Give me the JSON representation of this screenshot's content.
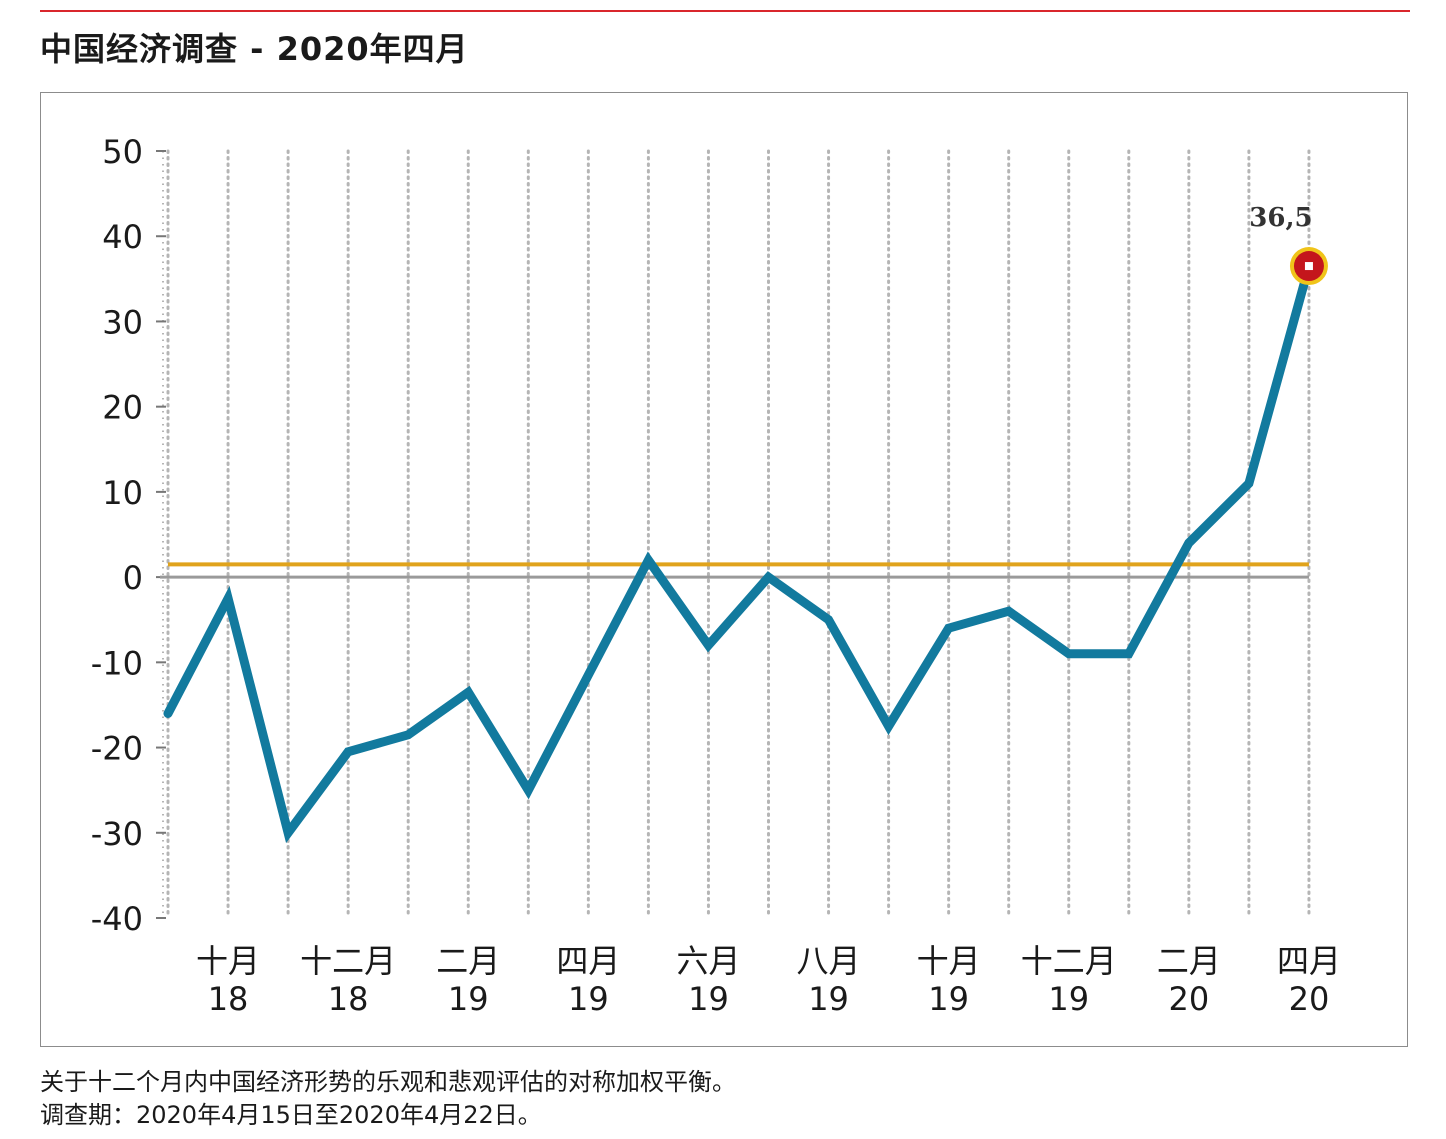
{
  "page": {
    "title": "中国经济调查 - 2020年四月",
    "footnote_1": "关于十二个月内中国经济形势的乐观和悲观评估的对称加权平衡。",
    "footnote_2": "调查期：2020年4月15日至2020年4月22日。"
  },
  "colors": {
    "accent_rule": "#d9262c",
    "series_line": "#127a9e",
    "reference_line": "#e0a31c",
    "zero_line": "#9a9a9a",
    "marker_fill": "#c4161c",
    "marker_ring": "#f0c419"
  },
  "chart_data": {
    "type": "line",
    "title": "中国经济调查 - 2020年四月",
    "xlabel": "",
    "ylabel": "",
    "ylim": [
      -40,
      50
    ],
    "yticks": [
      50,
      40,
      30,
      20,
      10,
      0,
      -10,
      -20,
      -30,
      -40
    ],
    "grid": "vertical dotted",
    "x": [
      "2018-09",
      "2018-10",
      "2018-11",
      "2018-12",
      "2019-01",
      "2019-02",
      "2019-03",
      "2019-04",
      "2019-05",
      "2019-06",
      "2019-07",
      "2019-08",
      "2019-09",
      "2019-10",
      "2019-11",
      "2019-12",
      "2020-01",
      "2020-02",
      "2020-03",
      "2020-04"
    ],
    "xtick_labels": [
      {
        "month": "十月",
        "year": "18",
        "x": "2018-10"
      },
      {
        "month": "十二月",
        "year": "18",
        "x": "2018-12"
      },
      {
        "month": "二月",
        "year": "19",
        "x": "2019-02"
      },
      {
        "month": "四月",
        "year": "19",
        "x": "2019-04"
      },
      {
        "month": "六月",
        "year": "19",
        "x": "2019-06"
      },
      {
        "month": "八月",
        "year": "19",
        "x": "2019-08"
      },
      {
        "month": "十月",
        "year": "19",
        "x": "2019-10"
      },
      {
        "month": "十二月",
        "year": "19",
        "x": "2019-12"
      },
      {
        "month": "二月",
        "year": "20",
        "x": "2020-02"
      },
      {
        "month": "四月",
        "year": "20",
        "x": "2020-04"
      }
    ],
    "series": [
      {
        "values": [
          -16,
          -2.5,
          -30,
          -20.5,
          -18.5,
          -13.5,
          -25,
          -11.5,
          2,
          -8,
          0,
          -5,
          -17.5,
          -6,
          -4,
          -9,
          -9,
          4,
          11,
          36.5
        ]
      }
    ],
    "reference_line": 1.5,
    "highlight": {
      "x": "2020-04",
      "value": 36.5,
      "label": "36,5"
    }
  }
}
